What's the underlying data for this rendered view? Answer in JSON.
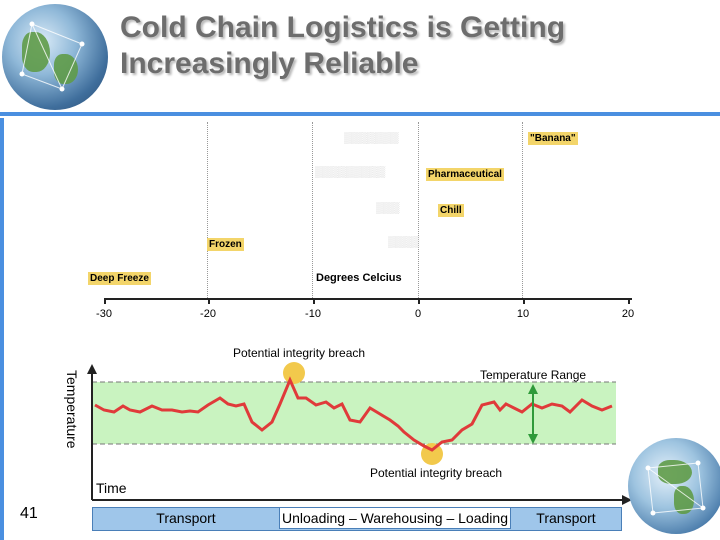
{
  "slide": {
    "title_line1": "Cold Chain Logistics is Getting",
    "title_line2": "Increasingly Reliable",
    "number": "41"
  },
  "temperature_chart": {
    "ticks": [
      "-30",
      "-20",
      "-10",
      "0",
      "10",
      "20"
    ],
    "categories": [
      {
        "label": "\"Banana\""
      },
      {
        "label": "Pharmaceutical"
      },
      {
        "label": "Chill"
      },
      {
        "label": "Frozen"
      },
      {
        "label": "Deep Freeze"
      }
    ],
    "axis_label": "Degrees Celcius"
  },
  "diagram": {
    "breach_top_label": "Potential integrity breach",
    "breach_bottom_label": "Potential integrity breach",
    "range_label": "Temperature Range",
    "y_label": "Temperature",
    "x_label": "Time",
    "phases": [
      "Transport",
      "Unloading – Warehousing – Loading",
      "Transport"
    ]
  },
  "colors": {
    "accent": "#4a8fe0",
    "temperature_line": "#e03a3a",
    "range_band": "#c9f3c0",
    "breach_marker": "#f2c94c",
    "range_arrow": "#2f9a3a"
  }
}
